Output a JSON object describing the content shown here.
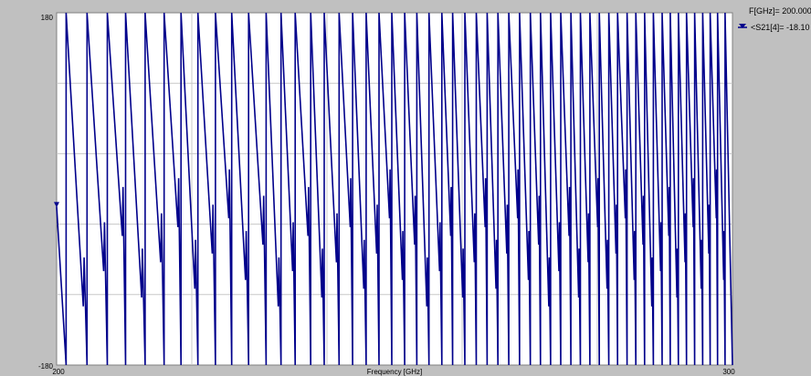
{
  "chart_data": {
    "type": "line",
    "title": "",
    "xlabel": "Frequency [GHz]",
    "ylabel": "",
    "xlim": [
      200,
      300
    ],
    "ylim": [
      -180,
      180
    ],
    "x_tick_labels": [
      "200",
      "300"
    ],
    "y_tick_labels": [
      "180",
      "-180"
    ],
    "grid": true,
    "legend_position": "top-right",
    "marker": {
      "x": 200,
      "y": -18.1,
      "readout_x": "F[GHz]= 200.000",
      "readout_y": "<S21[4]= -18.10"
    },
    "series": [
      {
        "name": "<S21[4]",
        "color": "#00008b",
        "description": "phase wraps repeatedly between +180 and -180 degrees with increasing wrap rate toward 300 GHz"
      }
    ],
    "phase_wrap_frequencies_ghz": [
      201.4,
      204.5,
      207.5,
      210.2,
      213.1,
      215.9,
      218.4,
      220.9,
      223.5,
      225.9,
      228.4,
      231.0,
      233.2,
      235.3,
      237.6,
      239.6,
      241.8,
      243.8,
      245.8,
      247.7,
      249.6,
      251.5,
      253.3,
      255.1,
      257.0,
      258.6,
      260.4,
      262.1,
      263.7,
      265.3,
      266.9,
      268.5,
      270.1,
      271.6,
      273.1,
      274.6,
      276.1,
      277.5,
      278.9,
      280.3,
      281.7,
      283.0,
      284.4,
      285.7,
      287.0,
      288.3,
      289.6,
      290.8,
      292.0,
      293.2,
      294.4,
      295.6,
      296.7,
      297.8,
      298.9
    ]
  }
}
